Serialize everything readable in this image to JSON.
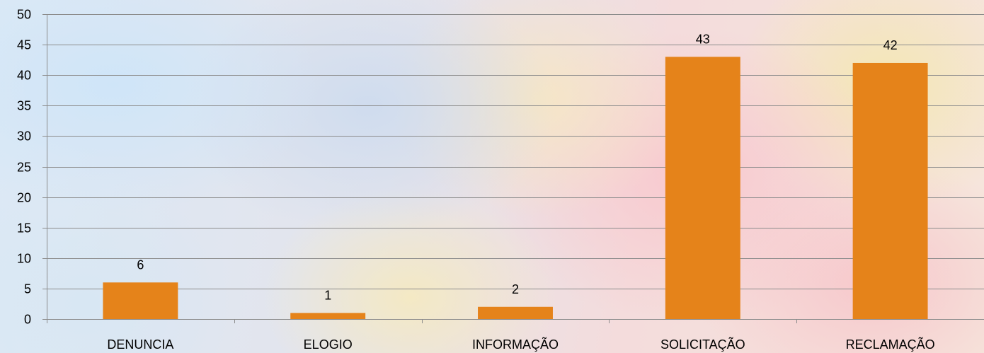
{
  "chart_data": {
    "type": "bar",
    "categories": [
      "DENUNCIA",
      "ELOGIO",
      "INFORMAÇÃO",
      "SOLICITAÇÃO",
      "RECLAMAÇÃO"
    ],
    "series": [
      {
        "values": [
          6,
          1,
          2,
          43,
          42
        ]
      }
    ],
    "data_labels": [
      "6",
      "1",
      "2",
      "43",
      "42"
    ],
    "yticks": [
      "0",
      "5",
      "10",
      "15",
      "20",
      "25",
      "30",
      "35",
      "40",
      "45",
      "50"
    ],
    "ylim": [
      0,
      50
    ],
    "grid": true,
    "legend": "none",
    "bar_color": "#e5831a",
    "grid_color": "#8c8c8c"
  }
}
